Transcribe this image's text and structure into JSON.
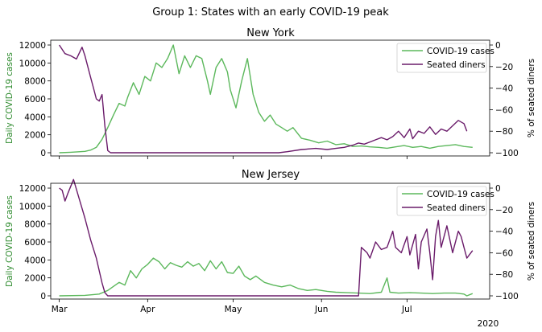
{
  "figure": {
    "suptitle": "Group 1: States with an early COVID-19 peak",
    "x_offset_label": "2020"
  },
  "colors": {
    "cases": "#5cb85c",
    "diners": "#6a1b6a",
    "left_axis_label": "#2e8b2e"
  },
  "legend": {
    "cases": "COVID-19 cases",
    "diners": "Seated diners"
  },
  "chart_data": [
    {
      "type": "line",
      "title": "New York",
      "ylabel_left": "Daily COVID-19 cases",
      "ylabel_right": "% of seated diners",
      "x_ticks": [
        "Mar",
        "Apr",
        "May",
        "Jun",
        "Jul"
      ],
      "show_x_tick_labels": false,
      "ylim_left": [
        0,
        12000
      ],
      "ylim_right": [
        -100,
        0
      ],
      "y_ticks_left": [
        "0",
        "2000",
        "4000",
        "6000",
        "8000",
        "10000",
        "12000"
      ],
      "y_ticks_right": [
        "0",
        "−20",
        "−40",
        "−60",
        "−80",
        "−100"
      ],
      "legend_position": "top-right",
      "series": [
        {
          "name": "COVID-19 cases",
          "axis": "left",
          "points": [
            [
              "2020-03-01",
              0
            ],
            [
              "2020-03-05",
              50
            ],
            [
              "2020-03-10",
              150
            ],
            [
              "2020-03-12",
              300
            ],
            [
              "2020-03-14",
              600
            ],
            [
              "2020-03-16",
              1500
            ],
            [
              "2020-03-18",
              2800
            ],
            [
              "2020-03-20",
              4200
            ],
            [
              "2020-03-22",
              5500
            ],
            [
              "2020-03-24",
              5200
            ],
            [
              "2020-03-25",
              6200
            ],
            [
              "2020-03-27",
              7800
            ],
            [
              "2020-03-29",
              6500
            ],
            [
              "2020-03-31",
              8500
            ],
            [
              "2020-04-02",
              8000
            ],
            [
              "2020-04-04",
              10000
            ],
            [
              "2020-04-06",
              9500
            ],
            [
              "2020-04-08",
              10500
            ],
            [
              "2020-04-10",
              12000
            ],
            [
              "2020-04-12",
              8800
            ],
            [
              "2020-04-14",
              10800
            ],
            [
              "2020-04-16",
              9500
            ],
            [
              "2020-04-18",
              10800
            ],
            [
              "2020-04-20",
              10500
            ],
            [
              "2020-04-22",
              8000
            ],
            [
              "2020-04-23",
              6500
            ],
            [
              "2020-04-25",
              9500
            ],
            [
              "2020-04-27",
              10500
            ],
            [
              "2020-04-29",
              9000
            ],
            [
              "2020-04-30",
              7000
            ],
            [
              "2020-05-02",
              5000
            ],
            [
              "2020-05-04",
              8000
            ],
            [
              "2020-05-06",
              10500
            ],
            [
              "2020-05-08",
              6500
            ],
            [
              "2020-05-10",
              4500
            ],
            [
              "2020-05-12",
              3500
            ],
            [
              "2020-05-14",
              4200
            ],
            [
              "2020-05-16",
              3200
            ],
            [
              "2020-05-18",
              2800
            ],
            [
              "2020-05-20",
              2400
            ],
            [
              "2020-05-22",
              2800
            ],
            [
              "2020-05-25",
              1600
            ],
            [
              "2020-05-28",
              1400
            ],
            [
              "2020-05-31",
              1100
            ],
            [
              "2020-06-03",
              1300
            ],
            [
              "2020-06-06",
              900
            ],
            [
              "2020-06-09",
              1000
            ],
            [
              "2020-06-12",
              700
            ],
            [
              "2020-06-15",
              750
            ],
            [
              "2020-06-18",
              650
            ],
            [
              "2020-06-21",
              600
            ],
            [
              "2020-06-24",
              500
            ],
            [
              "2020-06-27",
              650
            ],
            [
              "2020-06-30",
              800
            ],
            [
              "2020-07-03",
              600
            ],
            [
              "2020-07-06",
              700
            ],
            [
              "2020-07-09",
              500
            ],
            [
              "2020-07-12",
              700
            ],
            [
              "2020-07-15",
              800
            ],
            [
              "2020-07-18",
              900
            ],
            [
              "2020-07-21",
              700
            ],
            [
              "2020-07-24",
              600
            ]
          ]
        },
        {
          "name": "Seated diners",
          "axis": "right",
          "points": [
            [
              "2020-03-01",
              0
            ],
            [
              "2020-03-03",
              -8
            ],
            [
              "2020-03-05",
              -10
            ],
            [
              "2020-03-07",
              -13
            ],
            [
              "2020-03-09",
              -2
            ],
            [
              "2020-03-10",
              -10
            ],
            [
              "2020-03-12",
              -30
            ],
            [
              "2020-03-13",
              -40
            ],
            [
              "2020-03-14",
              -50
            ],
            [
              "2020-03-15",
              -52
            ],
            [
              "2020-03-16",
              -46
            ],
            [
              "2020-03-17",
              -75
            ],
            [
              "2020-03-18",
              -98
            ],
            [
              "2020-03-19",
              -100
            ],
            [
              "2020-05-17",
              -100
            ],
            [
              "2020-05-20",
              -99
            ],
            [
              "2020-05-25",
              -97
            ],
            [
              "2020-05-30",
              -96
            ],
            [
              "2020-06-03",
              -97
            ],
            [
              "2020-06-06",
              -96
            ],
            [
              "2020-06-09",
              -95
            ],
            [
              "2020-06-12",
              -93
            ],
            [
              "2020-06-14",
              -91
            ],
            [
              "2020-06-16",
              -92
            ],
            [
              "2020-06-18",
              -90
            ],
            [
              "2020-06-20",
              -88
            ],
            [
              "2020-06-22",
              -86
            ],
            [
              "2020-06-24",
              -88
            ],
            [
              "2020-06-26",
              -85
            ],
            [
              "2020-06-28",
              -80
            ],
            [
              "2020-06-30",
              -86
            ],
            [
              "2020-07-02",
              -78
            ],
            [
              "2020-07-03",
              -87
            ],
            [
              "2020-07-05",
              -80
            ],
            [
              "2020-07-07",
              -82
            ],
            [
              "2020-07-09",
              -76
            ],
            [
              "2020-07-11",
              -83
            ],
            [
              "2020-07-13",
              -78
            ],
            [
              "2020-07-15",
              -80
            ],
            [
              "2020-07-17",
              -75
            ],
            [
              "2020-07-19",
              -70
            ],
            [
              "2020-07-21",
              -73
            ],
            [
              "2020-07-22",
              -80
            ]
          ]
        }
      ]
    },
    {
      "type": "line",
      "title": "New Jersey",
      "ylabel_left": "Daily COVID-19 cases",
      "ylabel_right": "% of seated diners",
      "x_ticks": [
        "Mar",
        "Apr",
        "May",
        "Jun",
        "Jul"
      ],
      "show_x_tick_labels": true,
      "ylim_left": [
        0,
        12000
      ],
      "ylim_right": [
        -100,
        0
      ],
      "y_ticks_left": [
        "0",
        "2000",
        "4000",
        "6000",
        "8000",
        "10000",
        "12000"
      ],
      "y_ticks_right": [
        "0",
        "−20",
        "−40",
        "−60",
        "−80",
        "−100"
      ],
      "legend_position": "top-right",
      "series": [
        {
          "name": "COVID-19 cases",
          "axis": "left",
          "points": [
            [
              "2020-03-01",
              0
            ],
            [
              "2020-03-10",
              50
            ],
            [
              "2020-03-15",
              200
            ],
            [
              "2020-03-18",
              600
            ],
            [
              "2020-03-22",
              1500
            ],
            [
              "2020-03-24",
              1200
            ],
            [
              "2020-03-26",
              2800
            ],
            [
              "2020-03-28",
              2000
            ],
            [
              "2020-03-30",
              3000
            ],
            [
              "2020-04-01",
              3500
            ],
            [
              "2020-04-03",
              4200
            ],
            [
              "2020-04-05",
              3800
            ],
            [
              "2020-04-07",
              3000
            ],
            [
              "2020-04-09",
              3700
            ],
            [
              "2020-04-11",
              3400
            ],
            [
              "2020-04-13",
              3200
            ],
            [
              "2020-04-15",
              3800
            ],
            [
              "2020-04-17",
              3300
            ],
            [
              "2020-04-19",
              3600
            ],
            [
              "2020-04-21",
              2800
            ],
            [
              "2020-04-23",
              3900
            ],
            [
              "2020-04-25",
              3000
            ],
            [
              "2020-04-27",
              3800
            ],
            [
              "2020-04-29",
              2600
            ],
            [
              "2020-05-01",
              2500
            ],
            [
              "2020-05-03",
              3300
            ],
            [
              "2020-05-05",
              2200
            ],
            [
              "2020-05-07",
              1800
            ],
            [
              "2020-05-09",
              2200
            ],
            [
              "2020-05-12",
              1500
            ],
            [
              "2020-05-15",
              1200
            ],
            [
              "2020-05-18",
              1000
            ],
            [
              "2020-05-21",
              1200
            ],
            [
              "2020-05-24",
              800
            ],
            [
              "2020-05-27",
              600
            ],
            [
              "2020-05-30",
              700
            ],
            [
              "2020-06-03",
              500
            ],
            [
              "2020-06-06",
              400
            ],
            [
              "2020-06-10",
              350
            ],
            [
              "2020-06-14",
              300
            ],
            [
              "2020-06-18",
              250
            ],
            [
              "2020-06-22",
              400
            ],
            [
              "2020-06-24",
              2000
            ],
            [
              "2020-06-25",
              400
            ],
            [
              "2020-06-28",
              300
            ],
            [
              "2020-07-02",
              350
            ],
            [
              "2020-07-06",
              300
            ],
            [
              "2020-07-10",
              250
            ],
            [
              "2020-07-14",
              300
            ],
            [
              "2020-07-18",
              300
            ],
            [
              "2020-07-21",
              200
            ],
            [
              "2020-07-22",
              0
            ],
            [
              "2020-07-24",
              250
            ]
          ]
        },
        {
          "name": "Seated diners",
          "axis": "right",
          "points": [
            [
              "2020-03-01",
              0
            ],
            [
              "2020-03-02",
              -2
            ],
            [
              "2020-03-03",
              -12
            ],
            [
              "2020-03-04",
              -5
            ],
            [
              "2020-03-06",
              8
            ],
            [
              "2020-03-08",
              -10
            ],
            [
              "2020-03-10",
              -28
            ],
            [
              "2020-03-12",
              -48
            ],
            [
              "2020-03-14",
              -65
            ],
            [
              "2020-03-16",
              -88
            ],
            [
              "2020-03-17",
              -97
            ],
            [
              "2020-03-18",
              -100
            ],
            [
              "2020-06-14",
              -100
            ],
            [
              "2020-06-15",
              -55
            ],
            [
              "2020-06-17",
              -60
            ],
            [
              "2020-06-18",
              -65
            ],
            [
              "2020-06-20",
              -50
            ],
            [
              "2020-06-22",
              -57
            ],
            [
              "2020-06-24",
              -55
            ],
            [
              "2020-06-26",
              -40
            ],
            [
              "2020-06-27",
              -55
            ],
            [
              "2020-06-29",
              -60
            ],
            [
              "2020-07-01",
              -45
            ],
            [
              "2020-07-02",
              -62
            ],
            [
              "2020-07-04",
              -43
            ],
            [
              "2020-07-05",
              -75
            ],
            [
              "2020-07-06",
              -50
            ],
            [
              "2020-07-08",
              -38
            ],
            [
              "2020-07-09",
              -60
            ],
            [
              "2020-07-10",
              -85
            ],
            [
              "2020-07-11",
              -45
            ],
            [
              "2020-07-12",
              -30
            ],
            [
              "2020-07-13",
              -55
            ],
            [
              "2020-07-15",
              -35
            ],
            [
              "2020-07-17",
              -60
            ],
            [
              "2020-07-19",
              -40
            ],
            [
              "2020-07-20",
              -45
            ],
            [
              "2020-07-21",
              -55
            ],
            [
              "2020-07-22",
              -65
            ],
            [
              "2020-07-24",
              -58
            ]
          ]
        }
      ]
    }
  ]
}
